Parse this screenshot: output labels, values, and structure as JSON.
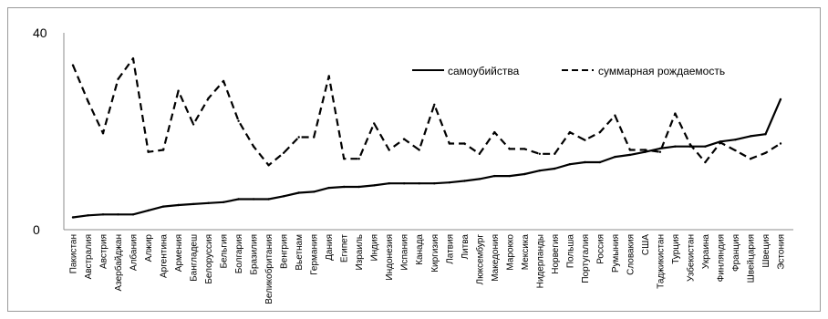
{
  "chart_data": {
    "type": "line",
    "title": "",
    "xlabel": "",
    "ylabel": "",
    "ylim": [
      0,
      40
    ],
    "yticks": [
      "0",
      "40"
    ],
    "grid": false,
    "legend_position": "top-right",
    "categories": [
      "Пакистан",
      "Австралия",
      "Австрия",
      "Азербайджан",
      "Албания",
      "Алжир",
      "Аргентина",
      "Армения",
      "Бангладеш",
      "Белоруссия",
      "Бельгия",
      "Болгария",
      "Бразилия",
      "Великобритания",
      "Венгрия",
      "Вьетнам",
      "Германия",
      "Дания",
      "Египет",
      "Израиль",
      "Индия",
      "Индонезия",
      "Испания",
      "Канада",
      "Киргизия",
      "Латвия",
      "Литва",
      "Люксембург",
      "Македония",
      "Марокко",
      "Мексика",
      "Нидерланды",
      "Норвегия",
      "Польша",
      "Португалия",
      "Россия",
      "Румыния",
      "Словакия",
      "США",
      "Таджикистан",
      "Турция",
      "Узбекистан",
      "Украина",
      "Финляндия",
      "Франция",
      "Швейцария",
      "Швеция",
      "Эстония"
    ],
    "series": [
      {
        "name": "самоубийства",
        "style": "solid",
        "values": [
          2.5,
          2.9,
          3.1,
          3.1,
          3.1,
          3.9,
          4.7,
          5.0,
          5.2,
          5.4,
          5.6,
          6.2,
          6.2,
          6.2,
          6.8,
          7.5,
          7.7,
          8.5,
          8.7,
          8.7,
          9.0,
          9.4,
          9.4,
          9.4,
          9.4,
          9.6,
          9.9,
          10.3,
          10.9,
          10.9,
          11.3,
          12.0,
          12.4,
          13.3,
          13.7,
          13.7,
          14.8,
          15.2,
          15.8,
          16.5,
          16.9,
          16.9,
          16.9,
          17.9,
          18.3,
          19.0,
          19.4,
          26.5
        ]
      },
      {
        "name": "суммарная рождаемость",
        "style": "dashed",
        "values": [
          33.4,
          26.1,
          19.6,
          30.6,
          34.8,
          15.8,
          16.2,
          28.2,
          21.4,
          26.7,
          30.2,
          22.1,
          16.9,
          13.1,
          15.6,
          18.8,
          18.8,
          31.2,
          14.4,
          14.4,
          21.6,
          16.2,
          18.4,
          16.2,
          25.4,
          17.5,
          17.5,
          15.4,
          19.8,
          16.4,
          16.4,
          15.4,
          15.4,
          19.8,
          18.2,
          19.8,
          23.2,
          16.2,
          16.2,
          15.8,
          23.6,
          17.3,
          13.7,
          17.7,
          16.1,
          14.4,
          15.6,
          17.5
        ]
      }
    ]
  },
  "colors": {
    "line": "#000000",
    "frame": "#9a9a9a",
    "axis": "#8c8c8c"
  }
}
